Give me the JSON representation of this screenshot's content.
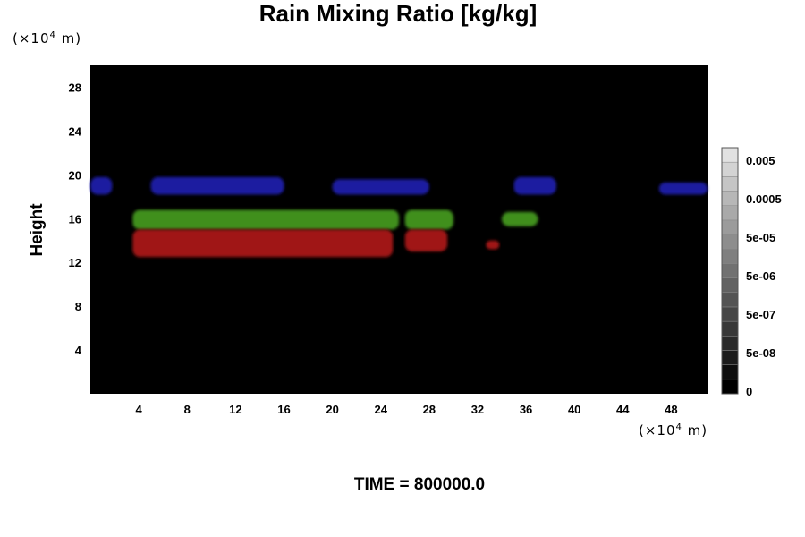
{
  "chart_data": {
    "type": "heatmap",
    "title": "Rain Mixing Ratio [kg/kg]",
    "ylabel": "Height",
    "xlabel": "",
    "x_unit": {
      "prefix": "(×10",
      "exp": "4",
      "suffix": " m)"
    },
    "y_unit": {
      "prefix": "(×10",
      "exp": "4",
      "suffix": " m)"
    },
    "xlim": [
      0,
      51
    ],
    "ylim": [
      0,
      30
    ],
    "x_ticks": [
      4,
      8,
      12,
      16,
      20,
      24,
      28,
      32,
      36,
      40,
      44,
      48
    ],
    "y_ticks": [
      4,
      8,
      12,
      16,
      20,
      24,
      28
    ],
    "background_color": "#000000",
    "colorbar": {
      "labels": [
        {
          "text": "0.005",
          "value": 0.005
        },
        {
          "text": "0.0005",
          "value": 0.0005
        },
        {
          "text": "5e-05",
          "value": 5e-05
        },
        {
          "text": "5e-06",
          "value": 5e-06
        },
        {
          "text": "5e-07",
          "value": 5e-07
        },
        {
          "text": "5e-08",
          "value": 5e-08
        },
        {
          "text": "0",
          "value": 0
        }
      ],
      "levels": 17
    },
    "regions": [
      {
        "name": "blue band west",
        "color": "#1a1aa0",
        "x": [
          0,
          1.8
        ],
        "y": [
          18.2,
          19.8
        ]
      },
      {
        "name": "blue band",
        "color": "#1a1aa0",
        "x": [
          5,
          16
        ],
        "y": [
          18.2,
          19.8
        ]
      },
      {
        "name": "blue band",
        "color": "#1a1aa0",
        "x": [
          20,
          28
        ],
        "y": [
          18.2,
          19.6
        ]
      },
      {
        "name": "blue band",
        "color": "#1a1aa0",
        "x": [
          35,
          38.5
        ],
        "y": [
          18.2,
          19.8
        ]
      },
      {
        "name": "blue band east",
        "color": "#1a1aa0",
        "x": [
          47,
          51
        ],
        "y": [
          18.2,
          19.3
        ]
      },
      {
        "name": "green band",
        "color": "#3f8f1f",
        "x": [
          3.5,
          25.5
        ],
        "y": [
          15,
          16.8
        ]
      },
      {
        "name": "green band",
        "color": "#3f8f1f",
        "x": [
          26,
          30
        ],
        "y": [
          15,
          16.8
        ]
      },
      {
        "name": "green band",
        "color": "#3f8f1f",
        "x": [
          34,
          37
        ],
        "y": [
          15.3,
          16.6
        ]
      },
      {
        "name": "red band",
        "color": "#a01414",
        "x": [
          3.5,
          25
        ],
        "y": [
          12.5,
          15
        ]
      },
      {
        "name": "red band",
        "color": "#a01414",
        "x": [
          26,
          29.5
        ],
        "y": [
          13,
          15
        ]
      },
      {
        "name": "red band",
        "color": "#a01414",
        "x": [
          32.7,
          33.8
        ],
        "y": [
          13.2,
          14
        ]
      }
    ]
  },
  "footer": {
    "time_text": "TIME = 800000.0"
  }
}
